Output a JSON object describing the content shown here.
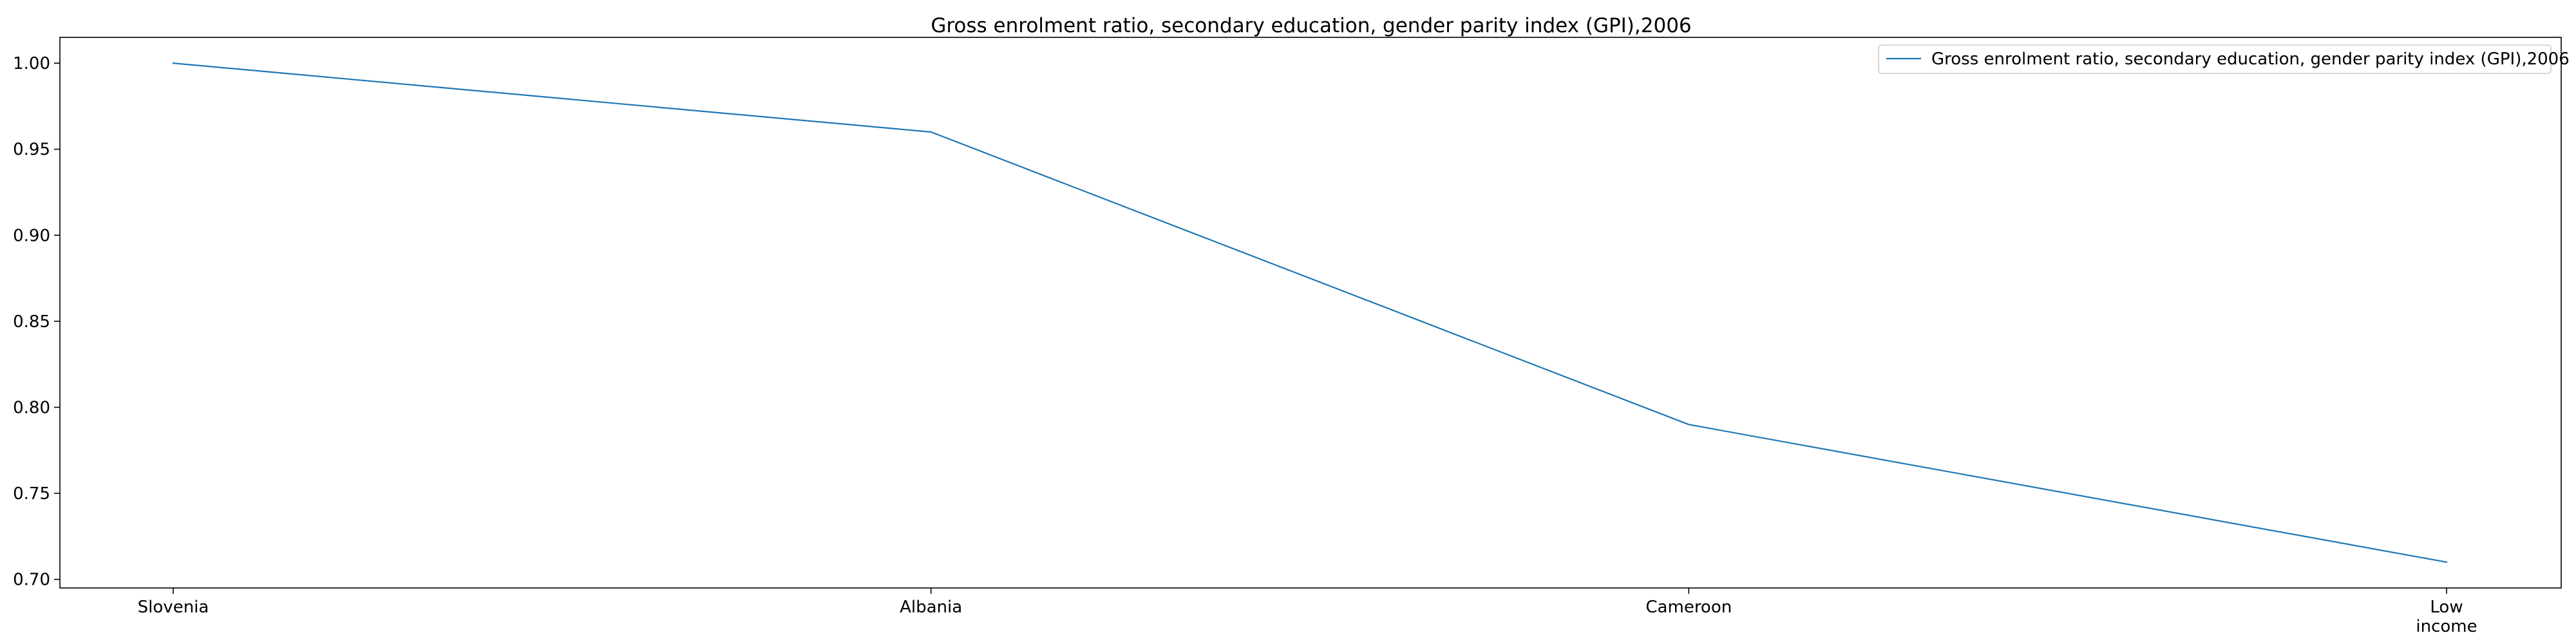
{
  "chart_data": {
    "type": "line",
    "title": "Gross enrolment ratio, secondary education, gender parity index (GPI),2006",
    "xlabel": "",
    "ylabel": "",
    "categories": [
      "Slovenia",
      "Albania",
      "Cameroon",
      "Low income"
    ],
    "category_lines": [
      [
        "Slovenia"
      ],
      [
        "Albania"
      ],
      [
        "Cameroon"
      ],
      [
        "Low",
        "income"
      ]
    ],
    "series": [
      {
        "name": "Gross enrolment ratio, secondary education, gender parity index (GPI),2006",
        "values": [
          1.0,
          0.96,
          0.79,
          0.71
        ],
        "color": "#1f77b4"
      }
    ],
    "ylim": [
      0.695,
      1.015
    ],
    "yticks": [
      0.7,
      0.75,
      0.8,
      0.85,
      0.9,
      0.95,
      1.0
    ],
    "ytick_labels": [
      "0.70",
      "0.75",
      "0.80",
      "0.85",
      "0.90",
      "0.95",
      "1.00"
    ],
    "grid": false,
    "legend_position": "top-right"
  }
}
